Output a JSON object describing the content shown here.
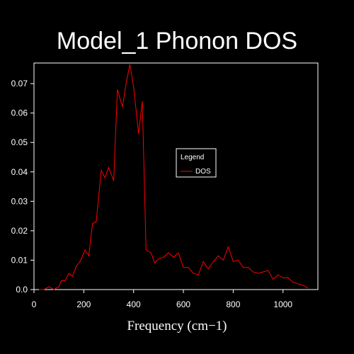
{
  "chart_data": {
    "type": "line",
    "title": "Model_1 Phonon DOS",
    "xlabel": "Frequency (cm−1)",
    "ylabel": "",
    "xlim": [
      0,
      1140
    ],
    "ylim": [
      0,
      0.077
    ],
    "xticks": [
      0,
      200,
      400,
      600,
      800,
      1000
    ],
    "xtick_labels": [
      "0",
      "200",
      "400",
      "600",
      "800",
      "1000"
    ],
    "yticks": [
      0,
      0.01,
      0.02,
      0.03,
      0.04,
      0.05,
      0.06,
      0.07
    ],
    "ytick_labels": [
      "0.0",
      "0.01",
      "0.02",
      "0.03",
      "0.04",
      "0.05",
      "0.06",
      "0.07"
    ],
    "grid": false,
    "legend": {
      "title": "Legend",
      "placement": "right-center"
    },
    "series": [
      {
        "name": "DOS",
        "color": "#ff0000",
        "x": [
          20,
          40,
          60,
          80,
          100,
          110,
          125,
          140,
          155,
          170,
          185,
          205,
          220,
          235,
          250,
          270,
          285,
          300,
          320,
          335,
          355,
          370,
          385,
          400,
          420,
          435,
          450,
          470,
          485,
          500,
          520,
          540,
          560,
          580,
          600,
          620,
          640,
          660,
          680,
          700,
          720,
          740,
          760,
          780,
          800,
          820,
          840,
          860,
          880,
          900,
          920,
          940,
          960,
          980,
          1000,
          1020,
          1040,
          1060,
          1080,
          1100
        ],
        "y": [
          0.0,
          0.0,
          0.001,
          0.0,
          0.001,
          0.003,
          0.003,
          0.0055,
          0.0045,
          0.008,
          0.0095,
          0.0135,
          0.0115,
          0.0225,
          0.023,
          0.0405,
          0.038,
          0.0415,
          0.037,
          0.068,
          0.062,
          0.07,
          0.0765,
          0.069,
          0.053,
          0.064,
          0.0135,
          0.0125,
          0.009,
          0.0105,
          0.011,
          0.0125,
          0.011,
          0.0125,
          0.0075,
          0.0075,
          0.0055,
          0.005,
          0.0095,
          0.007,
          0.0095,
          0.0115,
          0.01,
          0.0145,
          0.0095,
          0.01,
          0.0075,
          0.0075,
          0.006,
          0.0055,
          0.006,
          0.0065,
          0.0035,
          0.005,
          0.004,
          0.004,
          0.0025,
          0.002,
          0.0015,
          0.0005
        ]
      }
    ]
  }
}
